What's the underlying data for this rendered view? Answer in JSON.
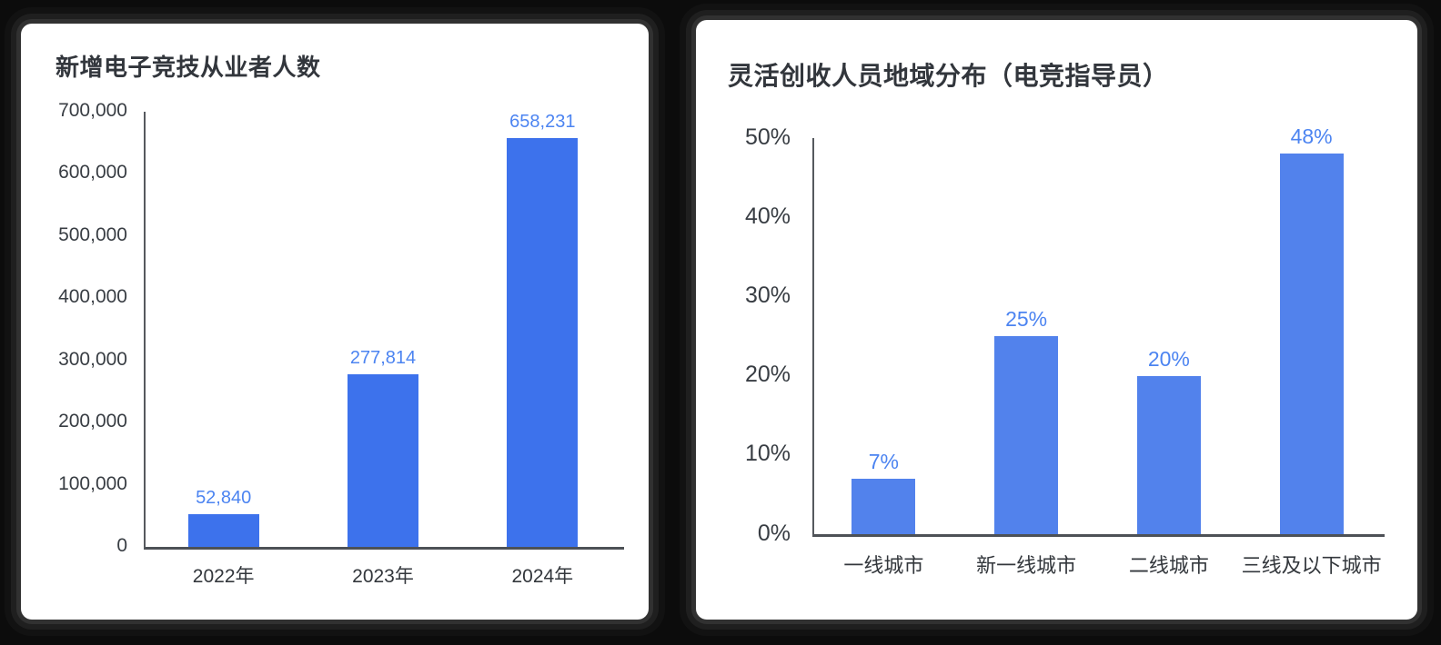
{
  "page": {
    "background_color": "#0c0c0c",
    "card_color": "#ffffff"
  },
  "chart_data": [
    {
      "type": "bar",
      "title": "新增电子竞技从业者人数",
      "categories": [
        "2022年",
        "2023年",
        "2024年"
      ],
      "values": [
        52840,
        277814,
        658231
      ],
      "data_labels": [
        "52,840",
        "277,814",
        "658,231"
      ],
      "xlabel": "",
      "ylabel": "",
      "ylim": [
        0,
        700000
      ],
      "y_ticks": [
        0,
        100000,
        200000,
        300000,
        400000,
        500000,
        600000,
        700000
      ],
      "y_tick_labels": [
        "0",
        "100,000",
        "200,000",
        "300,000",
        "400,000",
        "500,000",
        "600,000",
        "700,000"
      ],
      "grid": false,
      "legend": false,
      "bar_color": "#3d72ec",
      "data_label_color": "#4c84f1"
    },
    {
      "type": "bar",
      "title": "灵活创收人员地域分布（电竞指导员）",
      "categories": [
        "一线城市",
        "新一线城市",
        "二线城市",
        "三线及以下城市"
      ],
      "values": [
        7,
        25,
        20,
        48
      ],
      "data_labels": [
        "7%",
        "25%",
        "20%",
        "48%"
      ],
      "xlabel": "",
      "ylabel": "",
      "ylim": [
        0,
        50
      ],
      "y_ticks": [
        0,
        10,
        20,
        30,
        40,
        50
      ],
      "y_tick_labels": [
        "0%",
        "10%",
        "20%",
        "30%",
        "40%",
        "50%"
      ],
      "grid": false,
      "legend": false,
      "bar_color": "#5282ec",
      "data_label_color": "#4c84f1"
    }
  ]
}
